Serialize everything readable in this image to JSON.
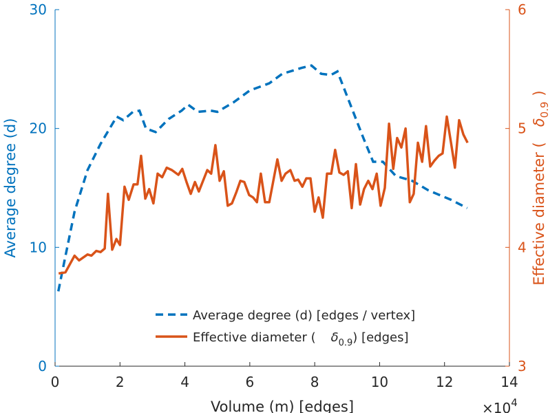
{
  "chart_data": {
    "type": "line",
    "xlabel": "Volume (m) [edges]",
    "x_multiplier": "×10",
    "x_multiplier_exp": "4",
    "ylabel_left": "Average degree (d)",
    "ylabel_right_prefix": "Effective diameter (",
    "ylabel_right_symbol": "δ",
    "ylabel_right_sub": "0.9",
    "ylabel_right_suffix": ")",
    "xlim": [
      0,
      14
    ],
    "ylim_left": [
      0,
      30
    ],
    "ylim_right": [
      3,
      6
    ],
    "xticks": [
      "0",
      "2",
      "4",
      "6",
      "8",
      "10",
      "12",
      "14"
    ],
    "yticks_left": [
      "0",
      "10",
      "20",
      "30"
    ],
    "yticks_right": [
      "3",
      "4",
      "5",
      "6"
    ],
    "legend_position": "bottom-center",
    "colors": {
      "left": "#0072BD",
      "right": "#D95319"
    },
    "series": [
      {
        "name": "Average degree (d) [edges / vertex]",
        "axis": "left",
        "style": "dashed",
        "x": [
          0.1,
          0.3,
          0.6,
          1.0,
          1.4,
          1.9,
          2.1,
          2.4,
          2.6,
          2.8,
          3.1,
          3.5,
          3.9,
          4.1,
          4.4,
          4.8,
          5.0,
          5.5,
          6.0,
          6.6,
          7.0,
          7.6,
          7.9,
          8.2,
          8.5,
          8.7,
          9.0,
          9.5,
          9.8,
          10.1,
          10.5,
          11.0,
          11.5,
          12.2,
          12.7
        ],
        "y": [
          6.3,
          9,
          13,
          16.5,
          18.7,
          21,
          20.7,
          21.4,
          21.5,
          20,
          19.7,
          20.8,
          21.5,
          22,
          21.4,
          21.5,
          21.4,
          22.2,
          23.2,
          23.8,
          24.6,
          25.1,
          25.3,
          24.6,
          24.5,
          24.8,
          22.7,
          19.2,
          17.2,
          17.2,
          16,
          15.6,
          14.8,
          14,
          13.3
        ]
      },
      {
        "name_prefix": "Effective diameter (",
        "name_symbol": "δ",
        "name_sub": "0.9",
        "name_suffix": ") [edges]",
        "axis": "right",
        "style": "solid",
        "x": [
          0.11,
          0.32,
          0.6,
          0.74,
          1.0,
          1.12,
          1.27,
          1.4,
          1.53,
          1.63,
          1.76,
          1.89,
          2.0,
          2.14,
          2.27,
          2.42,
          2.54,
          2.65,
          2.78,
          2.9,
          3.03,
          3.16,
          3.3,
          3.44,
          3.6,
          3.8,
          3.92,
          4.05,
          4.18,
          4.31,
          4.43,
          4.56,
          4.69,
          4.81,
          4.94,
          5.07,
          5.2,
          5.32,
          5.45,
          5.58,
          5.71,
          5.83,
          5.98,
          6.1,
          6.22,
          6.34,
          6.47,
          6.6,
          6.85,
          6.98,
          7.1,
          7.25,
          7.38,
          7.49,
          7.62,
          7.74,
          7.87,
          8.0,
          8.12,
          8.25,
          8.38,
          8.51,
          8.63,
          8.76,
          8.89,
          9.02,
          9.14,
          9.27,
          9.4,
          9.52,
          9.65,
          9.78,
          9.91,
          10.03,
          10.16,
          10.29,
          10.42,
          10.54,
          10.67,
          10.8,
          10.93,
          11.05,
          11.18,
          11.31,
          11.43,
          11.56,
          11.69,
          11.82,
          11.94,
          12.07,
          12.2,
          12.32,
          12.45,
          12.58,
          12.71
        ],
        "y": [
          3.78,
          3.79,
          3.93,
          3.89,
          3.94,
          3.93,
          3.97,
          3.96,
          3.99,
          4.45,
          3.98,
          4.07,
          4.02,
          4.51,
          4.4,
          4.53,
          4.53,
          4.77,
          4.41,
          4.49,
          4.37,
          4.62,
          4.59,
          4.67,
          4.65,
          4.61,
          4.66,
          4.55,
          4.45,
          4.55,
          4.47,
          4.56,
          4.65,
          4.62,
          4.86,
          4.56,
          4.64,
          4.35,
          4.37,
          4.46,
          4.56,
          4.55,
          4.44,
          4.42,
          4.38,
          4.62,
          4.38,
          4.38,
          4.74,
          4.56,
          4.62,
          4.65,
          4.56,
          4.57,
          4.51,
          4.58,
          4.58,
          4.3,
          4.42,
          4.25,
          4.62,
          4.62,
          4.82,
          4.63,
          4.61,
          4.64,
          4.33,
          4.7,
          4.36,
          4.49,
          4.56,
          4.49,
          4.62,
          4.35,
          4.5,
          5.04,
          4.66,
          4.92,
          4.84,
          5.0,
          4.38,
          4.45,
          4.88,
          4.72,
          5.02,
          4.68,
          4.73,
          4.77,
          4.79,
          5.1,
          4.88,
          4.67,
          5.07,
          4.95,
          4.88
        ]
      }
    ]
  }
}
